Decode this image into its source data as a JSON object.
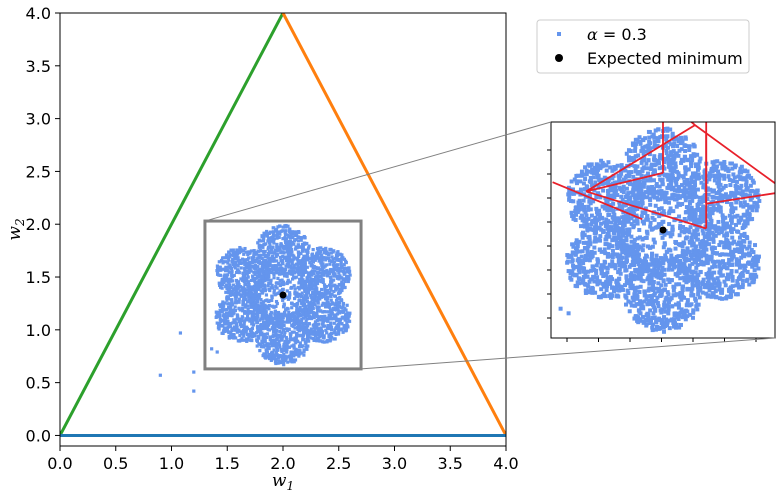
{
  "chart_data": {
    "type": "scatter",
    "xlabel": "w",
    "xlabel_sub": "1",
    "ylabel": "w",
    "ylabel_sub": "2",
    "xlim": [
      0.0,
      4.0
    ],
    "ylim": [
      -0.1,
      4.0
    ],
    "xticks": [
      "0.0",
      "0.5",
      "1.0",
      "1.5",
      "2.0",
      "2.5",
      "3.0",
      "3.5",
      "4.0"
    ],
    "yticks": [
      "0.0",
      "0.5",
      "1.0",
      "1.5",
      "2.0",
      "2.5",
      "3.0",
      "3.5",
      "4.0"
    ],
    "triangle": {
      "bottom": {
        "from": [
          0,
          0
        ],
        "to": [
          4,
          0
        ],
        "color": "#1f77b4"
      },
      "left": {
        "from": [
          0,
          0
        ],
        "to": [
          2,
          4
        ],
        "color": "#2ca02c"
      },
      "right": {
        "from": [
          2,
          4
        ],
        "to": [
          4,
          0
        ],
        "color": "#ff7f0e"
      }
    },
    "cloud": {
      "center": [
        2.0,
        1.33
      ],
      "lobe_offset": 0.42,
      "lobe_radius": 0.24,
      "hub_radius": 0.3,
      "color": "#6495ed"
    },
    "outliers": [
      [
        0.9,
        0.57
      ],
      [
        1.08,
        0.97
      ],
      [
        1.2,
        0.6
      ],
      [
        1.2,
        0.42
      ],
      [
        1.36,
        0.82
      ],
      [
        1.41,
        0.79
      ]
    ],
    "expected_minimum": {
      "x": 2.0,
      "y": 1.33,
      "color": "#000000"
    },
    "inset_region": {
      "x": [
        1.3,
        2.7
      ],
      "y": [
        0.63,
        2.03
      ],
      "color": "#808080"
    },
    "inset_red_segments": [
      [
        [
          2.0,
          2.19
        ],
        [
          2.0,
          1.7
        ]
      ],
      [
        [
          1.52,
          1.58
        ],
        [
          2.0,
          1.7
        ]
      ],
      [
        [
          1.52,
          1.58
        ],
        [
          2.2,
          2.01
        ]
      ],
      [
        [
          2.2,
          2.01
        ],
        [
          2.77,
          1.58
        ]
      ],
      [
        [
          2.77,
          1.58
        ],
        [
          2.27,
          1.5
        ]
      ],
      [
        [
          2.27,
          1.5
        ],
        [
          2.27,
          2.89
        ]
      ],
      [
        [
          2.27,
          1.95
        ],
        [
          2.27,
          1.34
        ]
      ],
      [
        [
          2.27,
          1.34
        ],
        [
          1.52,
          1.58
        ]
      ],
      [
        [
          1.31,
          1.64
        ],
        [
          1.87,
          1.4
        ]
      ],
      [
        [
          2.0,
          2.19
        ],
        [
          2.2,
          2.01
        ]
      ]
    ],
    "legend": {
      "placement": "upper-right",
      "entries": [
        {
          "label_prefix": "α",
          "label_suffix": " = 0.3",
          "marker": "square",
          "color": "#6495ed"
        },
        {
          "label": "Expected minimum",
          "marker": "circle",
          "color": "#000000"
        }
      ]
    }
  }
}
